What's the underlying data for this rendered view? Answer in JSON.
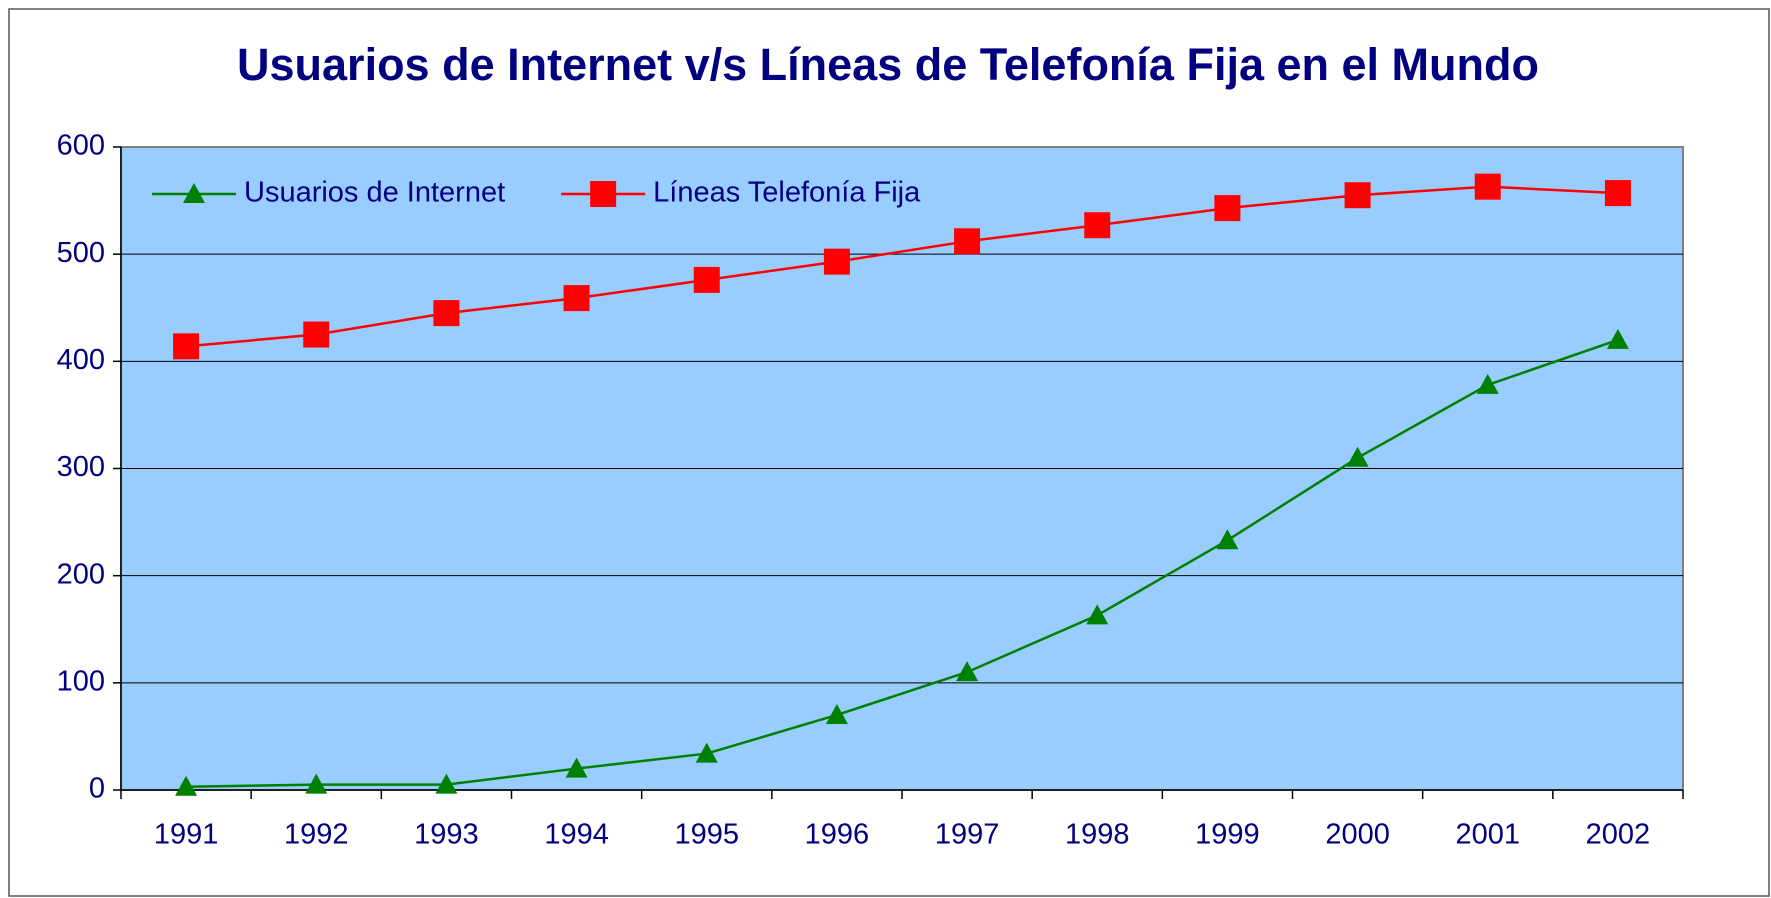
{
  "chart_data": {
    "type": "line",
    "title": "Usuarios de Internet v/s Líneas de Telefonía Fija en el Mundo",
    "categories": [
      "1991",
      "1992",
      "1993",
      "1994",
      "1995",
      "1996",
      "1997",
      "1998",
      "1999",
      "2000",
      "2001",
      "2002"
    ],
    "series": [
      {
        "name": "Usuarios de Internet",
        "color": "#008000",
        "marker": "triangle",
        "values": [
          3,
          5,
          5,
          20,
          34,
          70,
          110,
          163,
          233,
          310,
          378,
          420
        ]
      },
      {
        "name": "Líneas Telefonía Fija",
        "color": "#ff0000",
        "marker": "square",
        "values": [
          414,
          425,
          445,
          459,
          476,
          493,
          512,
          527,
          543,
          555,
          563,
          557
        ]
      }
    ],
    "ylim": [
      0,
      600
    ],
    "yticks": [
      0,
      100,
      200,
      300,
      400,
      500,
      600
    ],
    "grid": true,
    "legend": "top-left",
    "plot_background": "#99ccff"
  }
}
